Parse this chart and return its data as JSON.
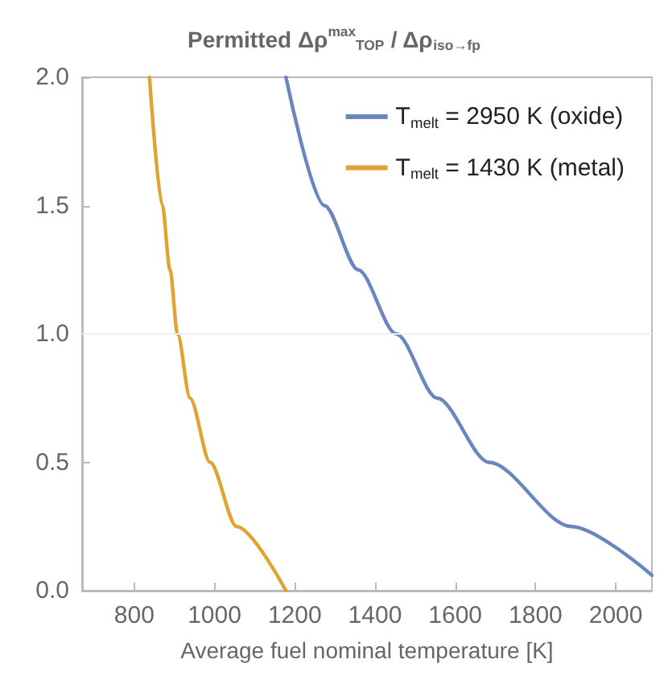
{
  "chart_data": {
    "type": "line",
    "title": "Permitted Δρ$^{max}$$_{TOP}$ / Δρ$_{iso→fp}$",
    "xlabel": "Average fuel nominal temperature [K]",
    "series": [
      {
        "name": "T$_{melt}$ = 2950 K (oxide)",
        "color": "#6b86bf",
        "x": [
          1178,
          1274,
          1358,
          1453,
          1555,
          1684,
          1889,
          2090
        ],
        "values": [
          2,
          1.5,
          1.25,
          1,
          0.75,
          0.5,
          0.25,
          0.06
        ]
      },
      {
        "name": "T$_{melt}$ = 1430 K (metal)",
        "color": "#e0a331",
        "x": [
          838,
          870,
          889,
          908,
          939,
          989,
          1055,
          1178
        ],
        "values": [
          2,
          1.5,
          1.25,
          1,
          0.75,
          0.5,
          0.25,
          0
        ]
      }
    ],
    "xlim": [
      670,
      2090
    ],
    "xticks": [
      800,
      1000,
      1200,
      1400,
      1600,
      1800,
      2000
    ],
    "ylim": [
      0,
      2
    ],
    "yticks": [
      {
        "value": 0,
        "label": "0.0"
      },
      0.5,
      {
        "value": 1,
        "label": "1.0"
      },
      1.5,
      {
        "value": 2,
        "label": "2.0"
      }
    ],
    "ref_lines": [
      {
        "axis": "y",
        "value": 1,
        "color": "#f0f0f0"
      }
    ],
    "legend": "top right",
    "grid": false,
    "marker": "none",
    "line_style": "solid"
  }
}
